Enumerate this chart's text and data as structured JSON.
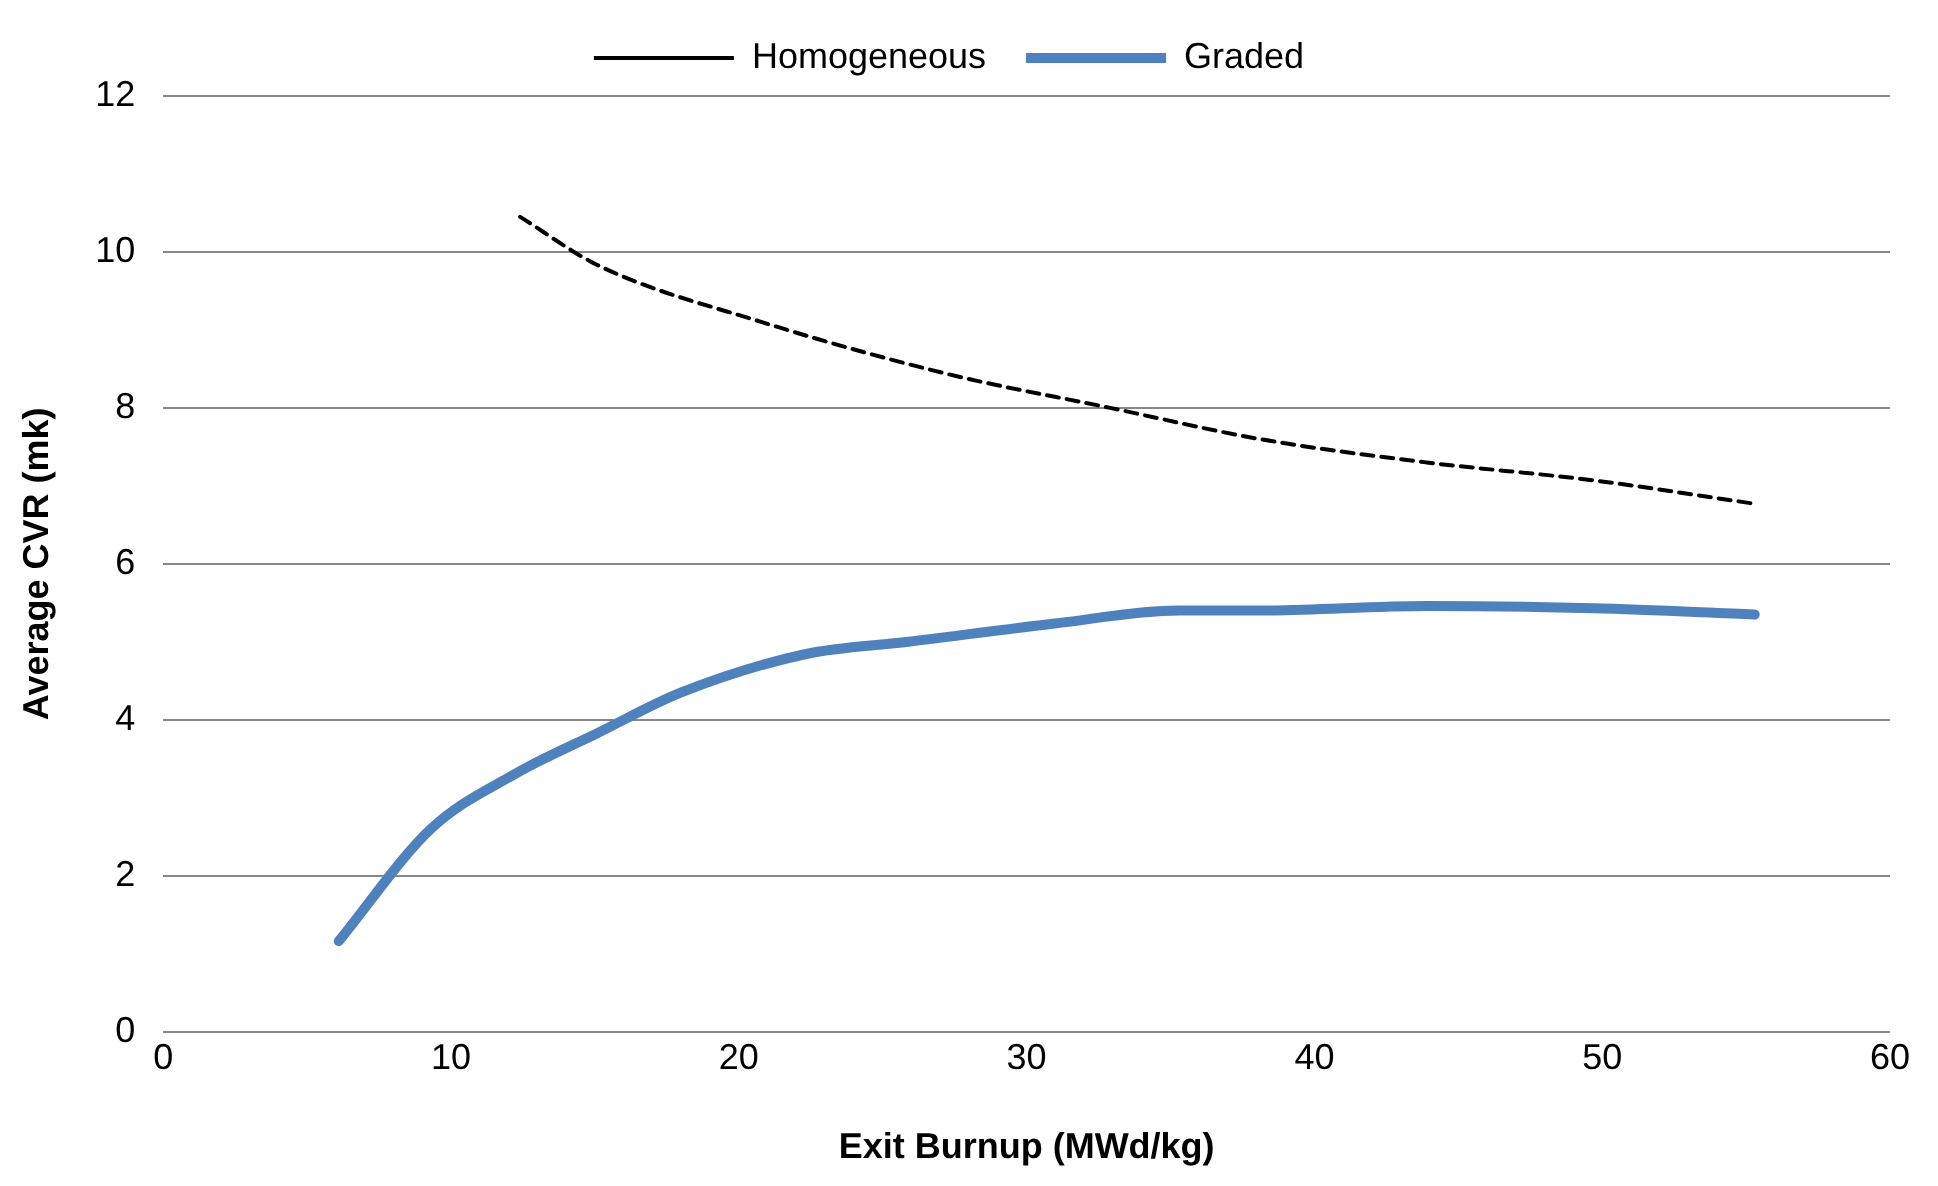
{
  "chart_data": {
    "type": "line",
    "xlabel": "Exit Burnup (MWd/kg)",
    "ylabel": "Average CVR (mk)",
    "xlim": [
      0,
      60
    ],
    "xticks": [
      0,
      10,
      20,
      30,
      40,
      50,
      60
    ],
    "ylim": [
      0,
      12
    ],
    "yticks": [
      0,
      2,
      4,
      6,
      8,
      10,
      12
    ],
    "grid": "y",
    "legend": "top",
    "marker": "none",
    "series": [
      {
        "name": "Homogeneous",
        "color": "#000000",
        "line_style": "dashed",
        "x": [
          12.4,
          15.1,
          20.8,
          27.3,
          32.9,
          38.1,
          43.9,
          49.7,
          55.3
        ],
        "values": [
          10.45,
          9.83,
          9.1,
          8.43,
          8.0,
          7.6,
          7.3,
          7.07,
          6.77
        ]
      },
      {
        "name": "Graded",
        "color": "#4f81bd",
        "line_style": "solid",
        "x": [
          6.1,
          9.3,
          12.2,
          15.1,
          18,
          22.3,
          25.9,
          30.9,
          35.3,
          38.1,
          43.9,
          49.7,
          55.3
        ],
        "values": [
          1.16,
          2.6,
          3.3,
          3.83,
          4.35,
          4.84,
          5.0,
          5.23,
          5.4,
          5.4,
          5.46,
          5.43,
          5.35
        ]
      }
    ]
  }
}
